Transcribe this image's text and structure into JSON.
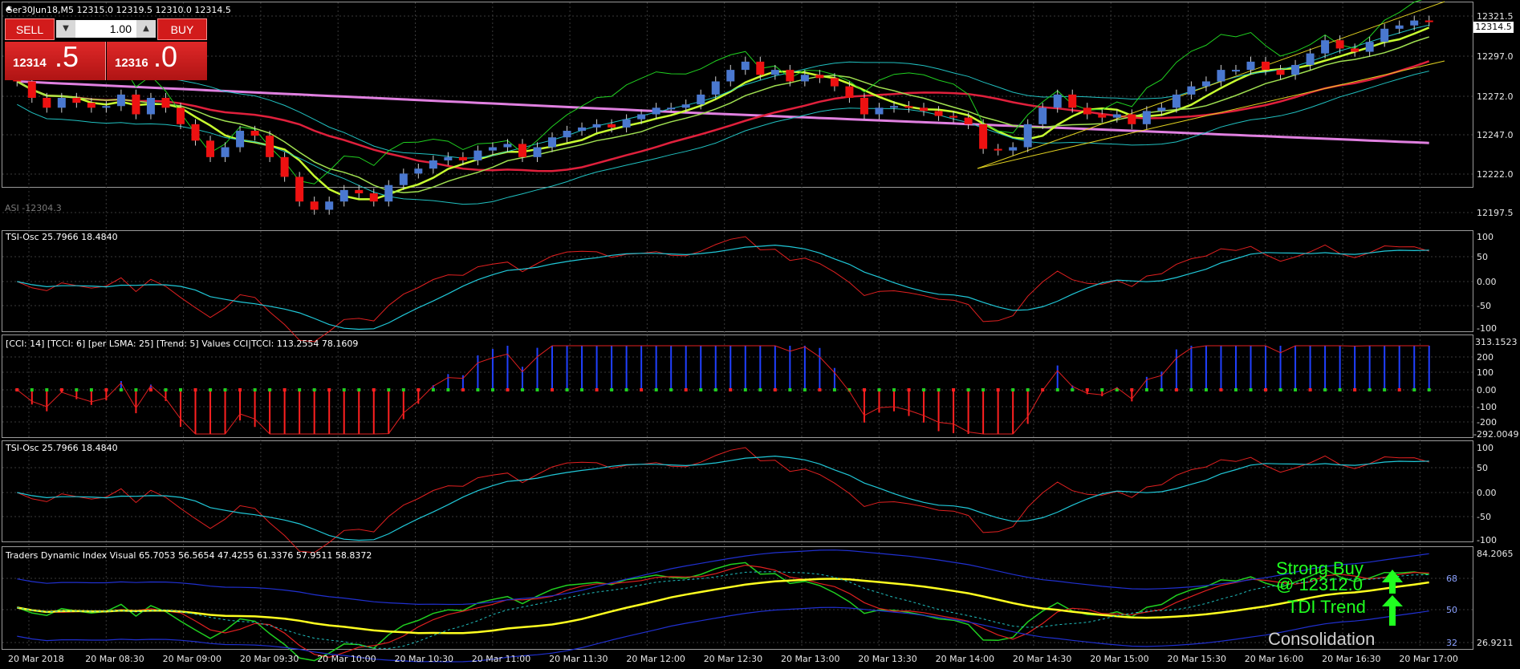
{
  "window": {
    "title": "Ger30Jun18,M5  12315.0 12319.5 12310.0 12314.5"
  },
  "trade_panel": {
    "sell_label": "SELL",
    "buy_label": "BUY",
    "lot_value": "1.00",
    "sell_price_small": "12314",
    "sell_price_big": ".5",
    "buy_price_small": "12316",
    "buy_price_big": ".0"
  },
  "main_pane": {
    "price_labels": [
      "12321.5",
      "12297.0",
      "12272.0",
      "12247.0",
      "12222.0",
      "12197.5"
    ],
    "current_price": "12314.5",
    "faded_label": "ASI -12304.3"
  },
  "tsi_pane_1": {
    "label": "TSI-Osc 25.7966 18.4840",
    "axis_labels": [
      "100",
      "50",
      "0.00",
      "-50",
      "-100"
    ]
  },
  "cci_pane": {
    "label": "[CCI: 14] [TCCI: 6] [per LSMA: 25] [Trend: 5] Values CCI|TCCI: 113.2554 78.1609",
    "axis_labels": [
      "313.1523",
      "200",
      "100",
      "0.00",
      "-100",
      "-200",
      "-292.0049"
    ]
  },
  "tsi_pane_2": {
    "label": "TSI-Osc 25.7966 18.4840",
    "axis_labels": [
      "100",
      "50",
      "0.00",
      "-50",
      "-100"
    ]
  },
  "tdi_pane": {
    "label": "Traders Dynamic Index Visual 65.7053 56.5654 47.4255 61.3376 57.9511 58.8372",
    "axis_labels": [
      "84.2065",
      "68",
      "50",
      "32",
      "26.9211"
    ],
    "signal_strong": "Strong Buy",
    "signal_price": "@ 12312.0",
    "signal_trend": "TDI Trend",
    "signal_state": "Consolidation"
  },
  "time_axis": [
    "20 Mar 2018",
    "20 Mar 08:30",
    "20 Mar 09:00",
    "20 Mar 09:30",
    "20 Mar 10:00",
    "20 Mar 10:30",
    "20 Mar 11:00",
    "20 Mar 11:30",
    "20 Mar 12:00",
    "20 Mar 12:30",
    "20 Mar 13:00",
    "20 Mar 13:30",
    "20 Mar 14:00",
    "20 Mar 14:30",
    "20 Mar 15:00",
    "20 Mar 15:30",
    "20 Mar 16:00",
    "20 Mar 16:30",
    "20 Mar 17:00"
  ],
  "colors": {
    "bull_candle": "#4a78d0",
    "bear_candle": "#ee1111",
    "ma_pink": "#e080e0",
    "ma_red": "#e0203c",
    "ma_yellow_green": "#c8ff30",
    "channel": "#e0d020",
    "cyan": "#20c0c0",
    "green": "#20d020",
    "tdi_yellow": "#ffff20",
    "tdi_blue": "#2030d0",
    "signal_green": "#20ff20"
  },
  "chart_data": {
    "type": "candlestick",
    "instrument": "Ger30Jun18",
    "timeframe": "M5",
    "ohlc_last": {
      "open": 12315.0,
      "high": 12319.5,
      "low": 12310.0,
      "close": 12314.5
    },
    "closes": [
      12278,
      12268,
      12262,
      12268,
      12265,
      12262,
      12263,
      12270,
      12258,
      12268,
      12262,
      12252,
      12242,
      12232,
      12238,
      12248,
      12245,
      12232,
      12220,
      12205,
      12200,
      12205,
      12212,
      12210,
      12205,
      12215,
      12222,
      12225,
      12230,
      12232,
      12230,
      12236,
      12238,
      12240,
      12232,
      12238,
      12244,
      12248,
      12250,
      12252,
      12250,
      12255,
      12258,
      12262,
      12262,
      12264,
      12270,
      12278,
      12285,
      12290,
      12282,
      12285,
      12278,
      12282,
      12280,
      12275,
      12268,
      12258,
      12262,
      12263,
      12262,
      12260,
      12257,
      12256,
      12252,
      12237,
      12236,
      12238,
      12252,
      12262,
      12270,
      12262,
      12258,
      12256,
      12258,
      12252,
      12260,
      12262,
      12270,
      12275,
      12278,
      12285,
      12285,
      12290,
      12285,
      12282,
      12288,
      12295,
      12303,
      12298,
      12296,
      12302,
      12310,
      12312,
      12315,
      12314.5
    ]
  }
}
